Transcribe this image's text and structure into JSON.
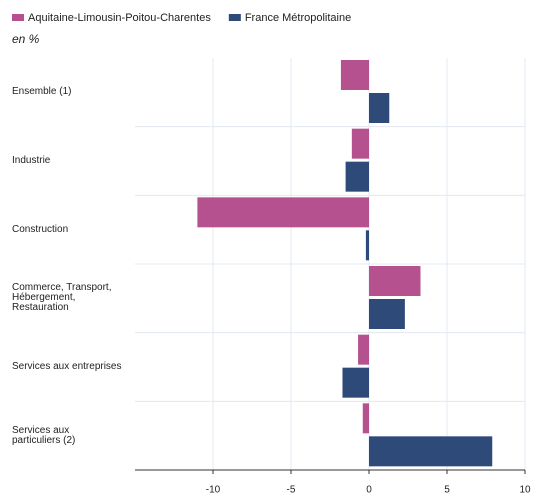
{
  "chart_data": {
    "type": "hbar",
    "subtitle": "en %",
    "categories": [
      "Ensemble (1)",
      "Industrie",
      "Construction",
      "Commerce, Transport,\nHébergement,\nRestauration",
      "Services aux entreprises",
      "Services aux\nparticuliers (2)"
    ],
    "series": [
      {
        "name": "Aquitaine-Limousin-Poitou-Charentes",
        "color": "#b5518f",
        "values": [
          -1.8,
          -1.1,
          -11.0,
          3.3,
          -0.7,
          -0.4
        ]
      },
      {
        "name": "France Métropolitaine",
        "color": "#2e4a78",
        "values": [
          1.3,
          -1.5,
          -0.2,
          2.3,
          -1.7,
          7.9
        ]
      }
    ],
    "xlim": [
      -15,
      10
    ],
    "xticks": [
      -10,
      -5,
      0,
      5,
      10
    ],
    "grid": true,
    "legend": "top-left"
  }
}
